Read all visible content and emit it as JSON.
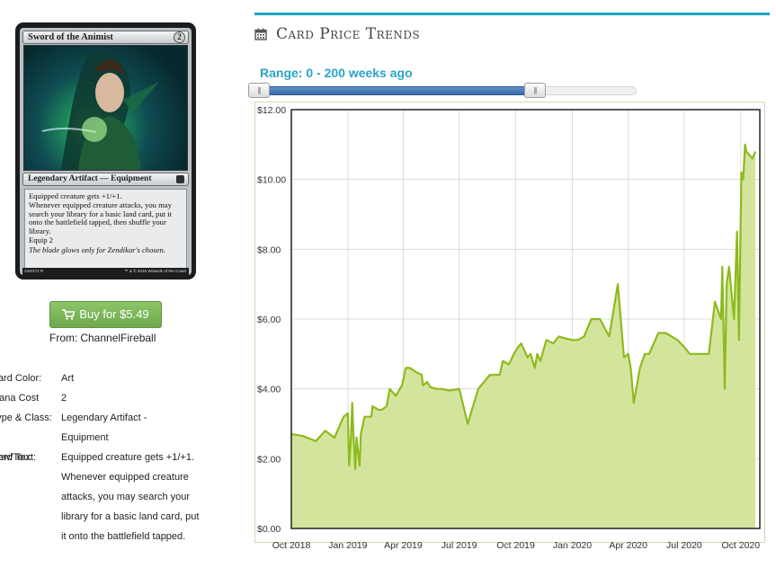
{
  "card": {
    "name": "Sword of the Animist",
    "mana": "2",
    "type_line": "Legendary Artifact — Equipment",
    "rules": [
      "Equipped creature gets +1/+1.",
      "Whenever equipped creature attacks, you may search your library for a basic land card, put it onto the battlefield tapped, then shuffle your library.",
      "Equip  2"
    ],
    "flavor": "The blade glows only for Zendikar's chosen.",
    "collector_number": "240/272 R",
    "copyright": "™ & © 2015 Wizards of the Coast"
  },
  "buy": {
    "label": "Buy for $5.49",
    "icon": "cart-icon"
  },
  "source": {
    "from_label": "From:",
    "store": "ChannelFireball"
  },
  "details": [
    {
      "label": "Card Color:",
      "value": "Art"
    },
    {
      "label": "Mana Cost",
      "value": "2"
    },
    {
      "label": "Type & Class:",
      "value": "Legendary Artifact -",
      "value2": "Equipment"
    },
    {
      "label": "Pow/Tou:",
      "value": ""
    },
    {
      "label": "Card Text:",
      "lines": [
        "Equipped creature gets +1/+1.",
        "Whenever equipped creature",
        "attacks, you may search your",
        "library for a basic land card, put",
        "it onto the battlefield tapped."
      ]
    }
  ],
  "trends": {
    "title": "Card Price Trends",
    "icon": "calendar-icon",
    "range_label": "Range: 0 - 200 weeks ago",
    "slider": {
      "min_weeks": 0,
      "max_weeks": 200,
      "accent": "#3a6aa8"
    },
    "accent": "#18a6c4"
  },
  "chart_data": {
    "type": "area",
    "title": "",
    "xlabel": "",
    "ylabel": "",
    "ylim": [
      0,
      12
    ],
    "y_ticks": [
      "$0.00",
      "$2.00",
      "$4.00",
      "$6.00",
      "$8.00",
      "$10.00",
      "$12.00"
    ],
    "x_ticks": [
      "Oct 2018",
      "Jan 2019",
      "Apr 2019",
      "Jul 2019",
      "Oct 2019",
      "Jan 2020",
      "Apr 2020",
      "Jul 2020",
      "Oct 2020"
    ],
    "grid": true,
    "line_color": "#8dba1e",
    "fill_color": "#d3e59c",
    "series": [
      {
        "x": [
          "2018-10-01",
          "2018-10-20",
          "2018-11-10",
          "2018-11-25",
          "2018-12-10",
          "2018-12-15",
          "2018-12-25",
          "2019-01-01",
          "2019-01-03",
          "2019-01-06",
          "2019-01-08",
          "2019-01-10",
          "2019-01-13",
          "2019-01-15",
          "2019-01-20",
          "2019-01-22",
          "2019-01-28",
          "2019-02-08",
          "2019-02-10",
          "2019-02-20",
          "2019-02-25",
          "2019-03-05",
          "2019-03-10",
          "2019-03-20",
          "2019-03-30",
          "2019-04-05",
          "2019-04-12",
          "2019-04-20",
          "2019-05-01",
          "2019-05-03",
          "2019-05-10",
          "2019-05-15",
          "2019-05-25",
          "2019-06-01",
          "2019-06-15",
          "2019-07-01",
          "2019-07-15",
          "2019-08-01",
          "2019-08-20",
          "2019-09-05",
          "2019-09-10",
          "2019-09-20",
          "2019-09-28",
          "2019-10-05",
          "2019-10-10",
          "2019-10-20",
          "2019-10-25",
          "2019-11-01",
          "2019-11-05",
          "2019-11-10",
          "2019-11-20",
          "2019-12-01",
          "2019-12-10",
          "2019-12-20",
          "2020-01-01",
          "2020-01-10",
          "2020-01-20",
          "2020-02-01",
          "2020-02-15",
          "2020-03-01",
          "2020-03-15",
          "2020-03-25",
          "2020-04-01",
          "2020-04-05",
          "2020-04-10",
          "2020-04-20",
          "2020-04-28",
          "2020-05-05",
          "2020-05-20",
          "2020-06-01",
          "2020-06-20",
          "2020-07-01",
          "2020-07-10",
          "2020-07-20",
          "2020-08-01",
          "2020-08-10",
          "2020-08-20",
          "2020-08-30",
          "2020-09-01",
          "2020-09-05",
          "2020-09-08",
          "2020-09-12",
          "2020-09-20",
          "2020-09-25",
          "2020-09-28",
          "2020-10-02",
          "2020-10-05",
          "2020-10-08",
          "2020-10-10",
          "2020-10-15",
          "2020-10-20",
          "2020-10-25"
        ],
        "values": [
          2.7,
          2.65,
          2.5,
          2.8,
          2.6,
          2.8,
          3.2,
          3.3,
          1.8,
          2.6,
          3.6,
          2.7,
          1.7,
          2.6,
          1.8,
          2.7,
          3.2,
          3.2,
          3.5,
          3.4,
          3.4,
          3.5,
          4.0,
          3.8,
          4.1,
          4.6,
          4.6,
          4.5,
          4.4,
          4.1,
          4.2,
          4.05,
          4.0,
          4.0,
          3.95,
          4.0,
          3.0,
          4.0,
          4.4,
          4.4,
          4.8,
          4.7,
          5.0,
          5.2,
          5.3,
          4.9,
          5.0,
          4.6,
          5.0,
          4.8,
          5.4,
          5.3,
          5.5,
          5.45,
          5.4,
          5.4,
          5.5,
          6.0,
          6.0,
          5.5,
          7.0,
          4.9,
          5.0,
          4.6,
          3.6,
          4.6,
          5.0,
          5.0,
          5.6,
          5.6,
          5.4,
          5.2,
          5.0,
          5.0,
          5.0,
          5.0,
          6.5,
          6.0,
          7.5,
          4.0,
          7.0,
          7.5,
          6.0,
          8.5,
          5.4,
          10.2,
          10.0,
          11.0,
          10.8,
          10.7,
          10.6,
          10.8
        ]
      }
    ]
  }
}
